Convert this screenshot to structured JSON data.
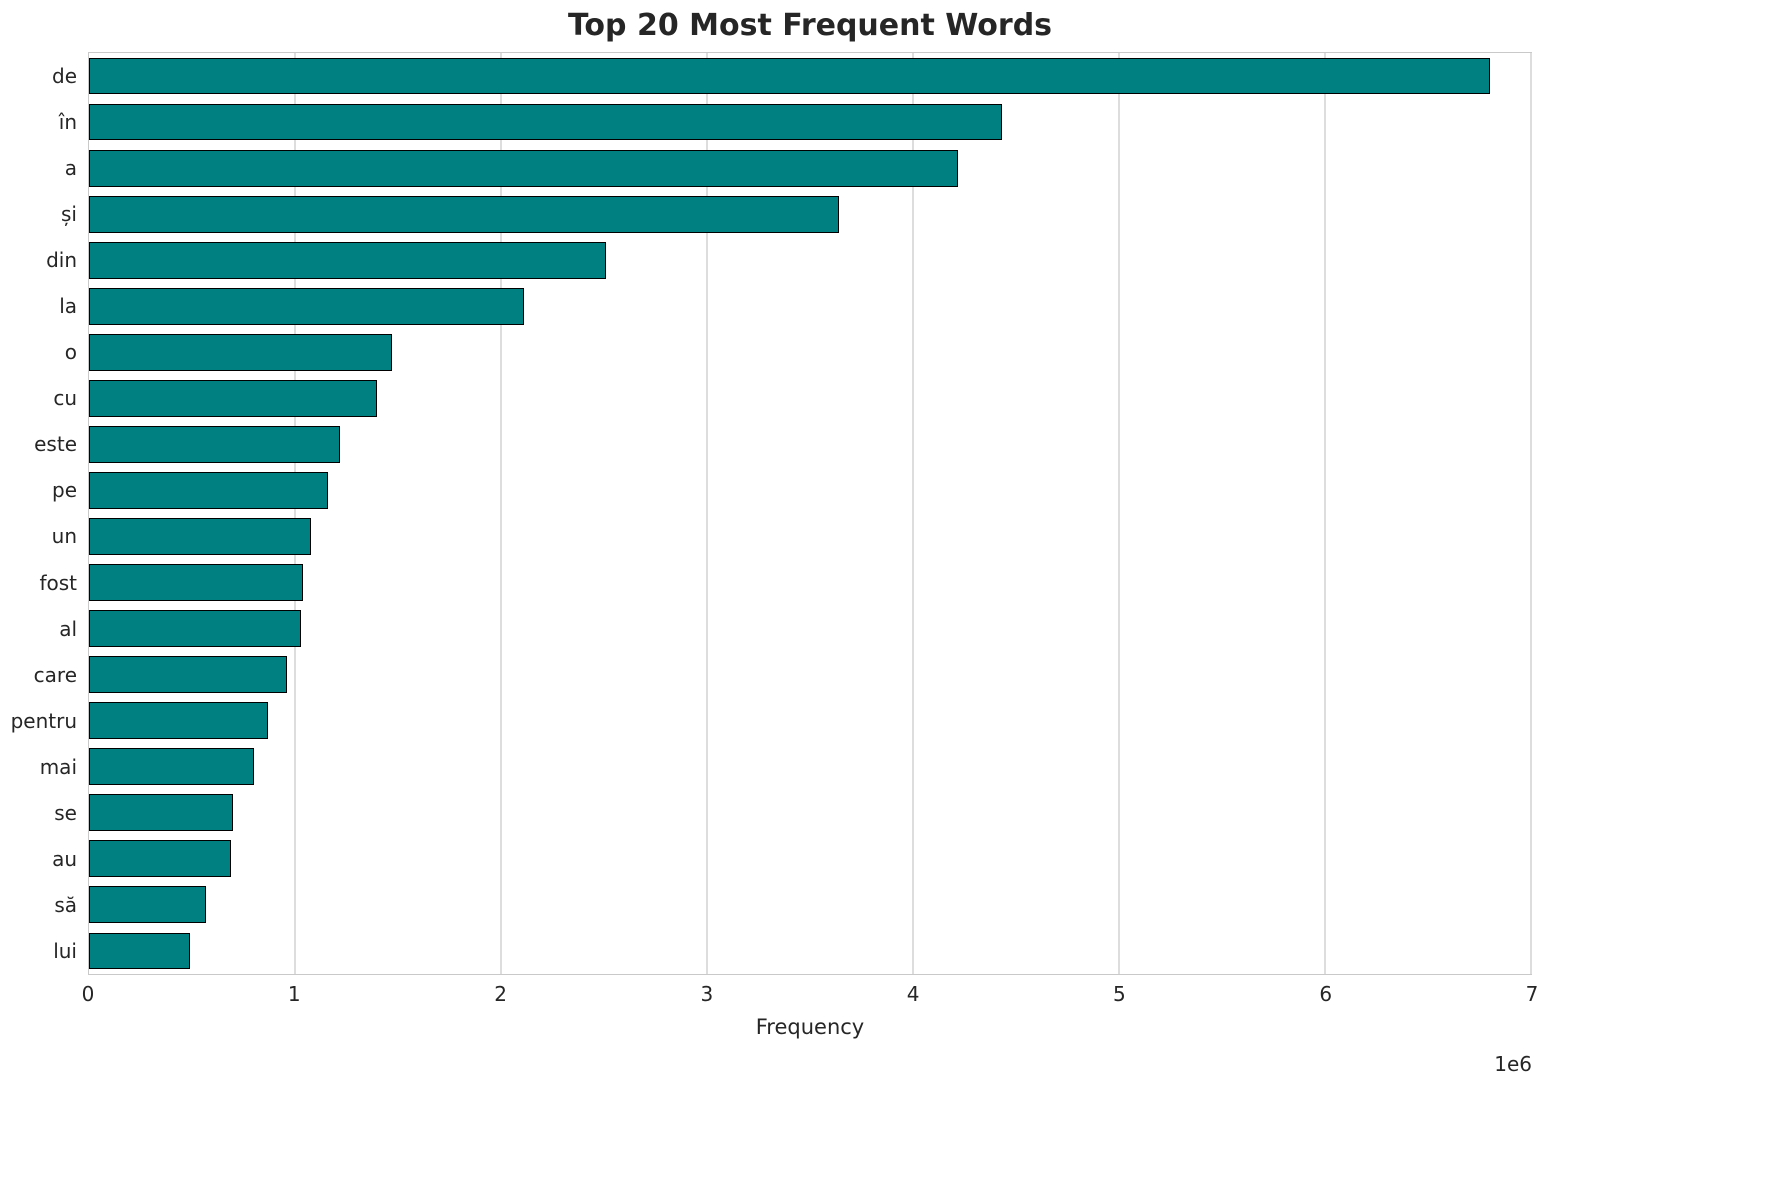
{
  "chart_data": {
    "type": "bar",
    "orientation": "horizontal",
    "title": "Top 20 Most Frequent Words",
    "xlabel": "Frequency",
    "ylabel": "",
    "x_scale_label": "1e6",
    "xlim": [
      0,
      7000000
    ],
    "x_ticks": [
      0,
      1,
      2,
      3,
      4,
      5,
      6,
      7
    ],
    "grid": true,
    "legend": "none",
    "bar_color": "#008080",
    "bar_edge_color": "#000000",
    "categories": [
      "de",
      "în",
      "a",
      "și",
      "din",
      "la",
      "o",
      "cu",
      "este",
      "pe",
      "un",
      "fost",
      "al",
      "care",
      "pentru",
      "mai",
      "se",
      "au",
      "să",
      "lui"
    ],
    "values": [
      6800000,
      4430000,
      4220000,
      3640000,
      2510000,
      2110000,
      1470000,
      1400000,
      1220000,
      1160000,
      1080000,
      1040000,
      1030000,
      960000,
      870000,
      800000,
      700000,
      690000,
      570000,
      490000
    ]
  }
}
